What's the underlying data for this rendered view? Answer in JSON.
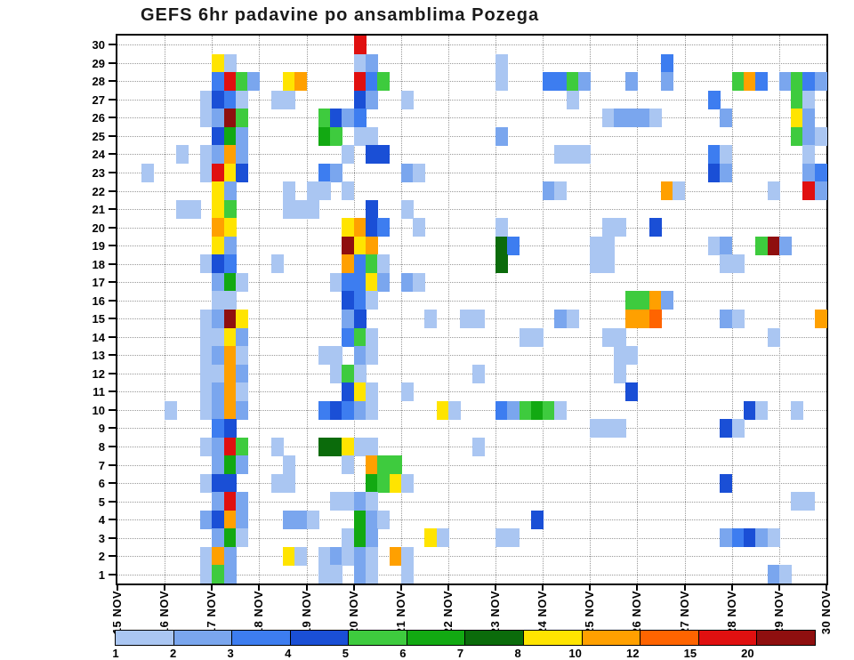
{
  "title": "GEFS 6hr padavine po ansamblima Pozega",
  "chart_data": {
    "type": "heatmap",
    "title": "GEFS 6hr padavine po ansamblima Pozega",
    "xlabel": "",
    "ylabel": "",
    "x_tick_labels": [
      "15 NOV",
      "16 NOV",
      "17 NOV",
      "18 NOV",
      "19 NOV",
      "20 NOV",
      "21 NOV",
      "22 NOV",
      "23 NOV",
      "24 NOV",
      "25 NOV",
      "26 NOV",
      "27 NOV",
      "28 NOV",
      "29 NOV",
      "30 NOV"
    ],
    "y_categories": [
      "1",
      "2",
      "3",
      "4",
      "5",
      "6",
      "7",
      "8",
      "9",
      "10",
      "11",
      "12",
      "13",
      "14",
      "15",
      "16",
      "17",
      "18",
      "19",
      "20",
      "21",
      "22",
      "23",
      "24",
      "25",
      "26",
      "27",
      "28",
      "29",
      "30"
    ],
    "columns_per_day": 4,
    "n_cols": 60,
    "grid": "dotted",
    "legend_position": "bottom",
    "colorbar": {
      "values": [
        1,
        2,
        3,
        4,
        5,
        6,
        7,
        8,
        10,
        12,
        15,
        20
      ],
      "colors": [
        "#aac6f2",
        "#7aa6ee",
        "#3d7df0",
        "#1a4fd6",
        "#3ecb3e",
        "#12a912",
        "#0b6b0b",
        "#ffe400",
        "#ffa000",
        "#ff6400",
        "#e01010",
        "#8f0f0f"
      ]
    },
    "cells": [
      [
        30,
        20,
        15
      ],
      [
        29,
        8,
        8
      ],
      [
        29,
        9,
        1
      ],
      [
        29,
        20,
        1
      ],
      [
        29,
        21,
        2
      ],
      [
        29,
        32,
        1
      ],
      [
        29,
        46,
        3
      ],
      [
        28,
        8,
        3
      ],
      [
        28,
        9,
        15
      ],
      [
        28,
        10,
        5
      ],
      [
        28,
        11,
        2
      ],
      [
        28,
        14,
        8
      ],
      [
        28,
        15,
        10
      ],
      [
        28,
        20,
        15
      ],
      [
        28,
        21,
        3
      ],
      [
        28,
        22,
        5
      ],
      [
        28,
        32,
        1
      ],
      [
        28,
        36,
        3
      ],
      [
        28,
        37,
        3
      ],
      [
        28,
        38,
        5
      ],
      [
        28,
        39,
        2
      ],
      [
        28,
        43,
        2
      ],
      [
        28,
        46,
        2
      ],
      [
        28,
        52,
        5
      ],
      [
        28,
        53,
        10
      ],
      [
        28,
        54,
        3
      ],
      [
        28,
        56,
        2
      ],
      [
        28,
        57,
        5
      ],
      [
        28,
        58,
        3
      ],
      [
        28,
        59,
        2
      ],
      [
        27,
        7,
        1
      ],
      [
        27,
        8,
        4
      ],
      [
        27,
        9,
        3
      ],
      [
        27,
        10,
        1
      ],
      [
        27,
        13,
        1
      ],
      [
        27,
        14,
        1
      ],
      [
        27,
        20,
        4
      ],
      [
        27,
        21,
        2
      ],
      [
        27,
        24,
        1
      ],
      [
        27,
        38,
        1
      ],
      [
        27,
        50,
        3
      ],
      [
        27,
        57,
        5
      ],
      [
        27,
        58,
        1
      ],
      [
        26,
        7,
        1
      ],
      [
        26,
        8,
        2
      ],
      [
        26,
        9,
        20
      ],
      [
        26,
        10,
        5
      ],
      [
        26,
        17,
        5
      ],
      [
        26,
        18,
        4
      ],
      [
        26,
        19,
        2
      ],
      [
        26,
        20,
        3
      ],
      [
        26,
        41,
        1
      ],
      [
        26,
        42,
        2
      ],
      [
        26,
        43,
        2
      ],
      [
        26,
        44,
        2
      ],
      [
        26,
        45,
        1
      ],
      [
        26,
        51,
        2
      ],
      [
        26,
        57,
        8
      ],
      [
        26,
        58,
        2
      ],
      [
        25,
        8,
        4
      ],
      [
        25,
        9,
        6
      ],
      [
        25,
        10,
        2
      ],
      [
        25,
        17,
        6
      ],
      [
        25,
        18,
        5
      ],
      [
        25,
        20,
        1
      ],
      [
        25,
        21,
        1
      ],
      [
        25,
        32,
        2
      ],
      [
        25,
        57,
        5
      ],
      [
        25,
        58,
        2
      ],
      [
        25,
        59,
        1
      ],
      [
        24,
        5,
        1
      ],
      [
        24,
        7,
        1
      ],
      [
        24,
        8,
        2
      ],
      [
        24,
        9,
        10
      ],
      [
        24,
        10,
        2
      ],
      [
        24,
        19,
        1
      ],
      [
        24,
        21,
        4
      ],
      [
        24,
        22,
        4
      ],
      [
        24,
        37,
        1
      ],
      [
        24,
        38,
        1
      ],
      [
        24,
        39,
        1
      ],
      [
        24,
        50,
        3
      ],
      [
        24,
        51,
        1
      ],
      [
        24,
        58,
        1
      ],
      [
        23,
        2,
        1
      ],
      [
        23,
        7,
        1
      ],
      [
        23,
        8,
        15
      ],
      [
        23,
        9,
        8
      ],
      [
        23,
        10,
        4
      ],
      [
        23,
        17,
        3
      ],
      [
        23,
        18,
        2
      ],
      [
        23,
        24,
        2
      ],
      [
        23,
        25,
        1
      ],
      [
        23,
        50,
        4
      ],
      [
        23,
        51,
        2
      ],
      [
        23,
        58,
        2
      ],
      [
        23,
        59,
        3
      ],
      [
        22,
        8,
        8
      ],
      [
        22,
        9,
        2
      ],
      [
        22,
        14,
        1
      ],
      [
        22,
        16,
        1
      ],
      [
        22,
        17,
        1
      ],
      [
        22,
        19,
        1
      ],
      [
        22,
        36,
        2
      ],
      [
        22,
        37,
        1
      ],
      [
        22,
        46,
        10
      ],
      [
        22,
        47,
        1
      ],
      [
        22,
        55,
        1
      ],
      [
        22,
        58,
        15
      ],
      [
        22,
        59,
        2
      ],
      [
        21,
        5,
        1
      ],
      [
        21,
        6,
        1
      ],
      [
        21,
        8,
        8
      ],
      [
        21,
        9,
        5
      ],
      [
        21,
        14,
        1
      ],
      [
        21,
        15,
        1
      ],
      [
        21,
        16,
        1
      ],
      [
        21,
        21,
        4
      ],
      [
        21,
        24,
        1
      ],
      [
        20,
        8,
        10
      ],
      [
        20,
        9,
        8
      ],
      [
        20,
        19,
        8
      ],
      [
        20,
        20,
        10
      ],
      [
        20,
        21,
        4
      ],
      [
        20,
        22,
        3
      ],
      [
        20,
        25,
        1
      ],
      [
        20,
        32,
        1
      ],
      [
        20,
        41,
        1
      ],
      [
        20,
        42,
        1
      ],
      [
        20,
        45,
        4
      ],
      [
        19,
        8,
        8
      ],
      [
        19,
        9,
        2
      ],
      [
        19,
        19,
        20
      ],
      [
        19,
        20,
        8
      ],
      [
        19,
        21,
        10
      ],
      [
        19,
        32,
        7
      ],
      [
        19,
        33,
        3
      ],
      [
        19,
        40,
        1
      ],
      [
        19,
        41,
        1
      ],
      [
        19,
        50,
        1
      ],
      [
        19,
        51,
        2
      ],
      [
        19,
        54,
        5
      ],
      [
        19,
        55,
        20
      ],
      [
        19,
        56,
        2
      ],
      [
        18,
        7,
        1
      ],
      [
        18,
        8,
        4
      ],
      [
        18,
        9,
        3
      ],
      [
        18,
        13,
        1
      ],
      [
        18,
        19,
        10
      ],
      [
        18,
        20,
        3
      ],
      [
        18,
        21,
        5
      ],
      [
        18,
        22,
        1
      ],
      [
        18,
        32,
        7
      ],
      [
        18,
        40,
        1
      ],
      [
        18,
        41,
        1
      ],
      [
        18,
        51,
        1
      ],
      [
        18,
        52,
        1
      ],
      [
        17,
        8,
        2
      ],
      [
        17,
        9,
        6
      ],
      [
        17,
        10,
        1
      ],
      [
        17,
        18,
        1
      ],
      [
        17,
        19,
        3
      ],
      [
        17,
        20,
        3
      ],
      [
        17,
        21,
        8
      ],
      [
        17,
        22,
        2
      ],
      [
        17,
        24,
        2
      ],
      [
        17,
        25,
        1
      ],
      [
        16,
        8,
        1
      ],
      [
        16,
        9,
        1
      ],
      [
        16,
        19,
        4
      ],
      [
        16,
        20,
        3
      ],
      [
        16,
        21,
        1
      ],
      [
        16,
        43,
        5
      ],
      [
        16,
        44,
        5
      ],
      [
        16,
        45,
        10
      ],
      [
        16,
        46,
        2
      ],
      [
        15,
        7,
        1
      ],
      [
        15,
        8,
        2
      ],
      [
        15,
        9,
        20
      ],
      [
        15,
        10,
        8
      ],
      [
        15,
        19,
        2
      ],
      [
        15,
        20,
        4
      ],
      [
        15,
        26,
        1
      ],
      [
        15,
        29,
        1
      ],
      [
        15,
        30,
        1
      ],
      [
        15,
        37,
        2
      ],
      [
        15,
        38,
        1
      ],
      [
        15,
        43,
        10
      ],
      [
        15,
        44,
        10
      ],
      [
        15,
        45,
        12
      ],
      [
        15,
        51,
        2
      ],
      [
        15,
        52,
        1
      ],
      [
        15,
        59,
        10
      ],
      [
        14,
        7,
        1
      ],
      [
        14,
        8,
        1
      ],
      [
        14,
        9,
        8
      ],
      [
        14,
        10,
        2
      ],
      [
        14,
        19,
        3
      ],
      [
        14,
        20,
        5
      ],
      [
        14,
        21,
        1
      ],
      [
        14,
        34,
        1
      ],
      [
        14,
        35,
        1
      ],
      [
        14,
        41,
        1
      ],
      [
        14,
        42,
        1
      ],
      [
        14,
        55,
        1
      ],
      [
        13,
        7,
        1
      ],
      [
        13,
        8,
        2
      ],
      [
        13,
        9,
        10
      ],
      [
        13,
        10,
        1
      ],
      [
        13,
        17,
        1
      ],
      [
        13,
        18,
        1
      ],
      [
        13,
        20,
        2
      ],
      [
        13,
        21,
        1
      ],
      [
        13,
        42,
        1
      ],
      [
        13,
        43,
        1
      ],
      [
        12,
        7,
        1
      ],
      [
        12,
        8,
        1
      ],
      [
        12,
        9,
        10
      ],
      [
        12,
        10,
        2
      ],
      [
        12,
        18,
        1
      ],
      [
        12,
        19,
        5
      ],
      [
        12,
        20,
        1
      ],
      [
        12,
        30,
        1
      ],
      [
        12,
        42,
        1
      ],
      [
        11,
        7,
        1
      ],
      [
        11,
        8,
        2
      ],
      [
        11,
        9,
        10
      ],
      [
        11,
        10,
        1
      ],
      [
        11,
        19,
        4
      ],
      [
        11,
        20,
        8
      ],
      [
        11,
        21,
        1
      ],
      [
        11,
        24,
        1
      ],
      [
        11,
        43,
        4
      ],
      [
        10,
        4,
        1
      ],
      [
        10,
        7,
        1
      ],
      [
        10,
        8,
        2
      ],
      [
        10,
        9,
        10
      ],
      [
        10,
        10,
        2
      ],
      [
        10,
        17,
        3
      ],
      [
        10,
        18,
        4
      ],
      [
        10,
        19,
        3
      ],
      [
        10,
        20,
        2
      ],
      [
        10,
        21,
        1
      ],
      [
        10,
        27,
        8
      ],
      [
        10,
        28,
        1
      ],
      [
        10,
        32,
        3
      ],
      [
        10,
        33,
        2
      ],
      [
        10,
        34,
        5
      ],
      [
        10,
        35,
        6
      ],
      [
        10,
        36,
        5
      ],
      [
        10,
        37,
        1
      ],
      [
        10,
        53,
        4
      ],
      [
        10,
        54,
        1
      ],
      [
        10,
        57,
        1
      ],
      [
        9,
        8,
        3
      ],
      [
        9,
        9,
        4
      ],
      [
        9,
        40,
        1
      ],
      [
        9,
        41,
        1
      ],
      [
        9,
        42,
        1
      ],
      [
        9,
        51,
        4
      ],
      [
        9,
        52,
        1
      ],
      [
        8,
        7,
        1
      ],
      [
        8,
        8,
        2
      ],
      [
        8,
        9,
        15
      ],
      [
        8,
        10,
        5
      ],
      [
        8,
        13,
        1
      ],
      [
        8,
        17,
        7
      ],
      [
        8,
        18,
        7
      ],
      [
        8,
        19,
        8
      ],
      [
        8,
        20,
        1
      ],
      [
        8,
        21,
        1
      ],
      [
        8,
        30,
        1
      ],
      [
        7,
        8,
        2
      ],
      [
        7,
        9,
        6
      ],
      [
        7,
        10,
        2
      ],
      [
        7,
        14,
        1
      ],
      [
        7,
        19,
        1
      ],
      [
        7,
        21,
        10
      ],
      [
        7,
        22,
        5
      ],
      [
        7,
        23,
        5
      ],
      [
        6,
        7,
        1
      ],
      [
        6,
        8,
        4
      ],
      [
        6,
        9,
        4
      ],
      [
        6,
        13,
        1
      ],
      [
        6,
        14,
        1
      ],
      [
        6,
        21,
        6
      ],
      [
        6,
        22,
        5
      ],
      [
        6,
        23,
        8
      ],
      [
        6,
        24,
        1
      ],
      [
        6,
        51,
        4
      ],
      [
        5,
        8,
        2
      ],
      [
        5,
        9,
        15
      ],
      [
        5,
        10,
        2
      ],
      [
        5,
        18,
        1
      ],
      [
        5,
        19,
        1
      ],
      [
        5,
        20,
        2
      ],
      [
        5,
        21,
        1
      ],
      [
        5,
        57,
        1
      ],
      [
        5,
        58,
        1
      ],
      [
        4,
        7,
        2
      ],
      [
        4,
        8,
        4
      ],
      [
        4,
        9,
        10
      ],
      [
        4,
        10,
        2
      ],
      [
        4,
        14,
        2
      ],
      [
        4,
        15,
        2
      ],
      [
        4,
        16,
        1
      ],
      [
        4,
        20,
        6
      ],
      [
        4,
        21,
        2
      ],
      [
        4,
        22,
        1
      ],
      [
        4,
        35,
        4
      ],
      [
        3,
        8,
        2
      ],
      [
        3,
        9,
        6
      ],
      [
        3,
        10,
        1
      ],
      [
        3,
        19,
        1
      ],
      [
        3,
        20,
        6
      ],
      [
        3,
        21,
        2
      ],
      [
        3,
        26,
        8
      ],
      [
        3,
        27,
        1
      ],
      [
        3,
        32,
        1
      ],
      [
        3,
        33,
        1
      ],
      [
        3,
        51,
        2
      ],
      [
        3,
        52,
        3
      ],
      [
        3,
        53,
        4
      ],
      [
        3,
        54,
        2
      ],
      [
        3,
        55,
        1
      ],
      [
        2,
        7,
        1
      ],
      [
        2,
        8,
        10
      ],
      [
        2,
        9,
        2
      ],
      [
        2,
        14,
        8
      ],
      [
        2,
        15,
        1
      ],
      [
        2,
        17,
        1
      ],
      [
        2,
        18,
        2
      ],
      [
        2,
        19,
        1
      ],
      [
        2,
        20,
        2
      ],
      [
        2,
        21,
        1
      ],
      [
        2,
        23,
        10
      ],
      [
        2,
        24,
        1
      ],
      [
        1,
        7,
        1
      ],
      [
        1,
        8,
        5
      ],
      [
        1,
        9,
        2
      ],
      [
        1,
        17,
        1
      ],
      [
        1,
        18,
        1
      ],
      [
        1,
        20,
        2
      ],
      [
        1,
        21,
        1
      ],
      [
        1,
        24,
        1
      ],
      [
        1,
        55,
        2
      ],
      [
        1,
        56,
        1
      ]
    ]
  }
}
